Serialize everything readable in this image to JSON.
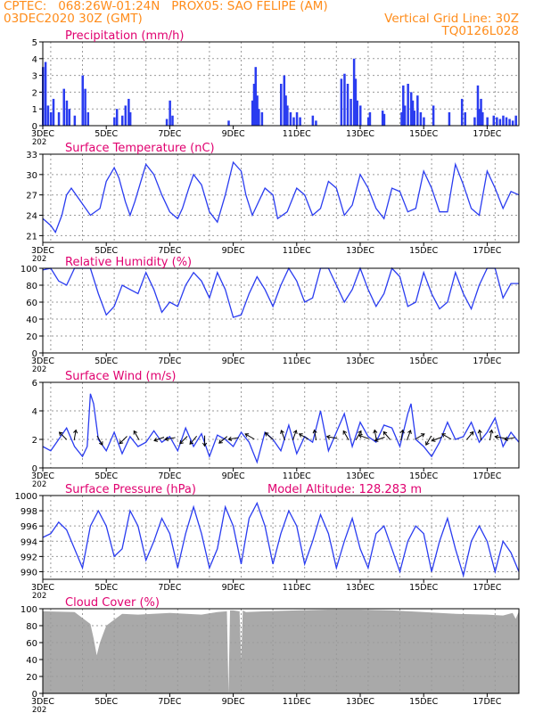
{
  "header": {
    "line1": "CPTEC:   068:26W-01:24N   PROX05: SAO FELIPE (AM)",
    "line2_left": "03DEC2020 30Z (GMT)",
    "line2_right": "Vertical Grid Line: 30Z",
    "line3_right": "TQ0126L028"
  },
  "colors": {
    "header": "#ff8c1a",
    "panel_title": "#e0006f",
    "series": "#2a3cf0",
    "cloud": "#a9a9a9"
  },
  "x_axis": {
    "day_range": [
      3,
      18
    ],
    "tick_labels": [
      {
        "day": 3,
        "label": "3DEC"
      },
      {
        "day": 5,
        "label": "5DEC"
      },
      {
        "day": 7,
        "label": "7DEC"
      },
      {
        "day": 9,
        "label": "9DEC"
      },
      {
        "day": 11,
        "label": "11DEC"
      },
      {
        "day": 13,
        "label": "13DEC"
      },
      {
        "day": 15,
        "label": "15DEC"
      },
      {
        "day": 17,
        "label": "17DEC"
      }
    ],
    "grid_days": [
      3.25,
      4.25,
      5.25,
      6.25,
      7.25,
      8.25,
      9.25,
      10.25,
      11.25,
      12.25,
      13.25,
      14.25,
      15.25,
      16.25,
      17.25
    ],
    "year_prefix": "202"
  },
  "chart_data": [
    {
      "id": "precip",
      "type": "bar",
      "title": "Precipitation (mm/h)",
      "ylim": [
        0,
        5
      ],
      "yticks": [
        "0",
        "1",
        "2",
        "3",
        "4",
        "5"
      ],
      "x": [
        3.0,
        3.08,
        3.16,
        3.25,
        3.33,
        3.5,
        3.66,
        3.75,
        3.83,
        4.0,
        4.25,
        4.33,
        4.42,
        5.25,
        5.33,
        5.5,
        5.6,
        5.7,
        5.75,
        6.9,
        7.0,
        7.08,
        8.85,
        9.6,
        9.65,
        9.7,
        9.75,
        9.8,
        9.9,
        10.5,
        10.6,
        10.65,
        10.7,
        10.8,
        10.9,
        11.0,
        11.1,
        11.5,
        11.6,
        12.4,
        12.5,
        12.6,
        12.7,
        12.8,
        12.85,
        12.9,
        13.0,
        13.25,
        13.3,
        13.7,
        13.75,
        14.3,
        14.35,
        14.4,
        14.5,
        14.6,
        14.65,
        14.7,
        14.8,
        14.9,
        15.0,
        15.3,
        15.8,
        16.2,
        16.3,
        16.6,
        16.7,
        16.75,
        16.8,
        16.85,
        17.0,
        17.2,
        17.3,
        17.4,
        17.5,
        17.6,
        17.7,
        17.8,
        17.9
      ],
      "values": [
        3.5,
        3.8,
        1.2,
        0.8,
        1.6,
        0.8,
        2.2,
        1.5,
        1.0,
        0.6,
        3.0,
        2.2,
        0.8,
        0.5,
        1.0,
        0.6,
        1.2,
        1.6,
        0.8,
        0.4,
        1.5,
        0.6,
        0.3,
        1.5,
        2.5,
        3.5,
        1.8,
        1.0,
        0.8,
        2.5,
        3.0,
        1.8,
        1.2,
        0.8,
        0.5,
        0.8,
        0.5,
        0.6,
        0.3,
        2.8,
        3.1,
        2.5,
        1.6,
        4.0,
        2.8,
        1.5,
        1.2,
        0.5,
        0.8,
        0.9,
        0.7,
        0.8,
        2.4,
        1.2,
        2.5,
        2.0,
        1.5,
        0.9,
        1.8,
        0.8,
        0.5,
        1.2,
        0.8,
        1.6,
        0.8,
        0.5,
        2.4,
        1.0,
        1.6,
        0.8,
        0.5,
        0.6,
        0.5,
        0.4,
        0.6,
        0.5,
        0.4,
        0.3,
        0.6
      ]
    },
    {
      "id": "temp",
      "type": "line",
      "title": "Surface Temperature (nC)",
      "ylim": [
        20,
        33
      ],
      "yticks": [
        "21",
        "24",
        "27",
        "30",
        "33"
      ],
      "x": [
        3.0,
        3.25,
        3.4,
        3.6,
        3.75,
        3.9,
        4.2,
        4.5,
        4.8,
        5.0,
        5.25,
        5.4,
        5.6,
        5.75,
        5.9,
        6.25,
        6.5,
        6.75,
        7.0,
        7.25,
        7.4,
        7.6,
        7.75,
        8.0,
        8.25,
        8.5,
        8.75,
        9.0,
        9.25,
        9.4,
        9.6,
        9.75,
        10.0,
        10.25,
        10.4,
        10.7,
        11.0,
        11.25,
        11.5,
        11.75,
        12.0,
        12.25,
        12.5,
        12.75,
        13.0,
        13.25,
        13.5,
        13.75,
        14.0,
        14.25,
        14.5,
        14.75,
        15.0,
        15.25,
        15.5,
        15.75,
        16.0,
        16.25,
        16.5,
        16.75,
        17.0,
        17.25,
        17.5,
        17.75,
        18.0
      ],
      "values": [
        23.5,
        22.5,
        21.5,
        24.0,
        27.0,
        28.0,
        26.0,
        24.0,
        25.0,
        29.0,
        31.0,
        29.5,
        26.0,
        24.0,
        26.0,
        31.5,
        30.0,
        27.0,
        24.5,
        23.5,
        25.0,
        28.0,
        30.0,
        28.5,
        24.5,
        23.0,
        27.0,
        31.8,
        30.5,
        27.0,
        24.0,
        25.5,
        28.0,
        27.0,
        23.5,
        24.5,
        28.0,
        27.0,
        24.0,
        25.0,
        29.0,
        28.0,
        24.0,
        25.5,
        30.0,
        28.0,
        25.0,
        23.5,
        28.0,
        27.5,
        24.5,
        25.0,
        30.5,
        28.0,
        24.5,
        24.5,
        31.5,
        28.5,
        25.0,
        24.0,
        30.5,
        28.0,
        25.0,
        27.5,
        27.0
      ]
    },
    {
      "id": "rh",
      "type": "line",
      "title": "Relative Humidity (%)",
      "ylim": [
        0,
        100
      ],
      "yticks": [
        "0",
        "20",
        "40",
        "60",
        "80",
        "100"
      ],
      "x": [
        3.0,
        3.25,
        3.5,
        3.75,
        4.0,
        4.25,
        4.5,
        4.75,
        5.0,
        5.25,
        5.5,
        5.75,
        6.0,
        6.25,
        6.5,
        6.75,
        7.0,
        7.25,
        7.5,
        7.75,
        8.0,
        8.25,
        8.5,
        8.75,
        9.0,
        9.25,
        9.5,
        9.75,
        10.0,
        10.25,
        10.5,
        10.75,
        11.0,
        11.25,
        11.5,
        11.75,
        12.0,
        12.25,
        12.5,
        12.75,
        13.0,
        13.25,
        13.5,
        13.75,
        14.0,
        14.25,
        14.5,
        14.75,
        15.0,
        15.25,
        15.5,
        15.75,
        16.0,
        16.25,
        16.5,
        16.75,
        17.0,
        17.25,
        17.5,
        17.75,
        18.0
      ],
      "values": [
        98,
        100,
        85,
        80,
        100,
        100,
        100,
        70,
        45,
        55,
        80,
        75,
        70,
        95,
        75,
        48,
        60,
        55,
        80,
        95,
        85,
        65,
        95,
        75,
        42,
        45,
        70,
        90,
        75,
        55,
        80,
        100,
        85,
        60,
        65,
        100,
        100,
        80,
        60,
        75,
        100,
        75,
        55,
        70,
        100,
        90,
        55,
        60,
        95,
        70,
        52,
        60,
        95,
        70,
        52,
        80,
        100,
        100,
        65,
        82,
        82
      ]
    },
    {
      "id": "wind",
      "type": "line",
      "title": "Surface Wind (m/s)",
      "ylim": [
        0,
        6
      ],
      "yticks": [
        "0",
        "2",
        "4",
        "6"
      ],
      "x": [
        3.0,
        3.25,
        3.5,
        3.75,
        4.0,
        4.25,
        4.4,
        4.5,
        4.6,
        4.75,
        5.0,
        5.25,
        5.5,
        5.75,
        6.0,
        6.25,
        6.5,
        6.75,
        7.0,
        7.25,
        7.5,
        7.75,
        8.0,
        8.25,
        8.5,
        8.75,
        9.0,
        9.25,
        9.5,
        9.75,
        10.0,
        10.25,
        10.5,
        10.75,
        11.0,
        11.25,
        11.5,
        11.75,
        12.0,
        12.25,
        12.5,
        12.75,
        13.0,
        13.25,
        13.5,
        13.75,
        14.0,
        14.25,
        14.5,
        14.6,
        14.75,
        15.0,
        15.25,
        15.5,
        15.75,
        16.0,
        16.25,
        16.5,
        16.75,
        17.0,
        17.25,
        17.5,
        17.75,
        18.0
      ],
      "values": [
        1.5,
        1.2,
        2.0,
        2.8,
        1.5,
        0.8,
        1.5,
        5.2,
        4.5,
        2.0,
        1.2,
        2.5,
        1.0,
        2.2,
        1.5,
        1.8,
        2.6,
        1.8,
        2.2,
        1.2,
        2.8,
        1.5,
        2.4,
        0.8,
        2.3,
        2.0,
        1.5,
        2.5,
        1.8,
        0.4,
        2.5,
        2.0,
        1.2,
        3.0,
        1.0,
        2.2,
        1.8,
        4.0,
        1.2,
        2.5,
        3.8,
        1.5,
        3.2,
        2.2,
        1.8,
        3.0,
        2.8,
        1.5,
        3.8,
        4.5,
        2.0,
        1.5,
        0.8,
        1.8,
        3.2,
        2.0,
        2.2,
        3.2,
        1.8,
        2.5,
        3.5,
        1.5,
        2.5,
        1.8
      ]
    },
    {
      "id": "pres",
      "type": "line",
      "title": "Surface Pressure (hPa)",
      "subtitle": "Model Altitude: 128.283 m",
      "ylim": [
        989,
        1000
      ],
      "yticks": [
        "990",
        "992",
        "994",
        "996",
        "998",
        "1000"
      ],
      "x": [
        3.0,
        3.25,
        3.5,
        3.75,
        4.0,
        4.25,
        4.5,
        4.75,
        5.0,
        5.25,
        5.5,
        5.75,
        6.0,
        6.25,
        6.5,
        6.75,
        7.0,
        7.25,
        7.5,
        7.75,
        8.0,
        8.25,
        8.5,
        8.75,
        9.0,
        9.25,
        9.5,
        9.75,
        10.0,
        10.25,
        10.5,
        10.75,
        11.0,
        11.25,
        11.5,
        11.75,
        12.0,
        12.25,
        12.5,
        12.75,
        13.0,
        13.25,
        13.5,
        13.75,
        14.0,
        14.25,
        14.5,
        14.75,
        15.0,
        15.25,
        15.5,
        15.75,
        16.0,
        16.25,
        16.5,
        16.75,
        17.0,
        17.25,
        17.5,
        17.75,
        18.0
      ],
      "values": [
        994.5,
        995.0,
        996.5,
        995.5,
        993.0,
        990.5,
        996.0,
        998.0,
        996.0,
        992.0,
        993.0,
        998.0,
        996.0,
        991.5,
        994.0,
        997.0,
        995.0,
        990.5,
        995.0,
        998.5,
        995.0,
        990.5,
        993.0,
        998.5,
        996.0,
        991.0,
        997.0,
        999.0,
        996.0,
        991.0,
        995.0,
        998.0,
        996.0,
        991.0,
        994.0,
        997.5,
        995.0,
        990.5,
        994.0,
        997.0,
        993.0,
        990.5,
        995.0,
        996.0,
        993.0,
        990.0,
        994.0,
        996.0,
        995.0,
        990.0,
        994.0,
        997.0,
        993.0,
        989.5,
        994.0,
        996.0,
        994.0,
        990.0,
        994.0,
        992.5,
        990.0
      ]
    },
    {
      "id": "cloud",
      "type": "area",
      "title": "Cloud Cover (%)",
      "ylim": [
        0,
        100
      ],
      "yticks": [
        "0",
        "20",
        "40",
        "60",
        "80",
        "100"
      ],
      "x": [
        3.0,
        4.0,
        4.5,
        4.6,
        4.7,
        4.8,
        4.9,
        5.0,
        5.5,
        6.0,
        7.0,
        8.0,
        8.5,
        8.8,
        8.85,
        8.9,
        9.0,
        9.2,
        9.25,
        9.3,
        9.4,
        10.0,
        11.0,
        12.0,
        13.0,
        14.0,
        15.0,
        16.0,
        17.0,
        17.5,
        17.8,
        17.9,
        18.0
      ],
      "values": [
        97,
        96,
        82,
        65,
        45,
        60,
        70,
        80,
        94,
        93,
        95,
        93,
        96,
        97,
        0,
        98,
        98,
        97,
        38,
        98,
        96,
        97,
        98,
        99,
        99,
        98,
        96,
        94,
        93,
        92,
        95,
        88,
        97
      ]
    }
  ],
  "wind_arrows": {
    "x": [
      3.7,
      4.0,
      4.75,
      5.6,
      6.0,
      6.75,
      7.1,
      7.5,
      7.8,
      8.1,
      8.75,
      9.1,
      9.6,
      10.2,
      10.6,
      10.9,
      11.3,
      11.6,
      12.2,
      12.6,
      12.9,
      13.2,
      13.5,
      13.7,
      13.9,
      14.3,
      14.5,
      14.8,
      15.2,
      15.5,
      15.8,
      16.4,
      16.8,
      17.1,
      17.5,
      17.8
    ],
    "angle_deg": [
      135,
      80,
      300,
      225,
      120,
      200,
      190,
      225,
      230,
      270,
      220,
      190,
      150,
      140,
      110,
      70,
      150,
      100,
      170,
      120,
      60,
      160,
      100,
      200,
      130,
      80,
      70,
      30,
      240,
      200,
      150,
      50,
      100,
      80,
      170,
      190
    ]
  }
}
